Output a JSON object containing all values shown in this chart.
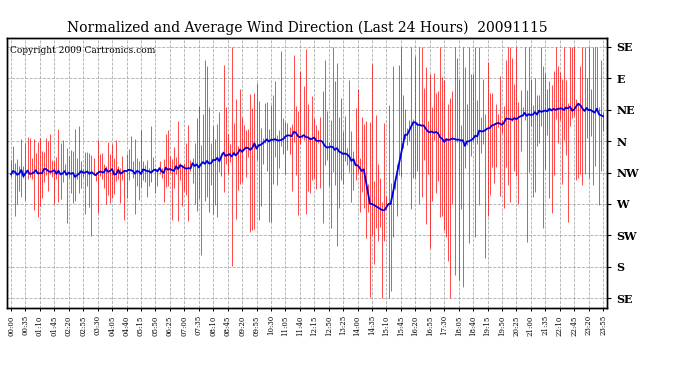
{
  "title": "Normalized and Average Wind Direction (Last 24 Hours)  20091115",
  "copyright": "Copyright 2009 Cartronics.com",
  "ytick_labels": [
    "SE",
    "E",
    "NE",
    "N",
    "NW",
    "W",
    "SW",
    "S",
    "SE"
  ],
  "ytick_values": [
    8,
    7,
    6,
    5,
    4,
    3,
    2,
    1,
    0
  ],
  "ylim": [
    -0.3,
    8.3
  ],
  "plot_bg_color": "#ffffff",
  "red_color": "#ff0000",
  "blue_color": "#0000dd",
  "grid_color": "#999999",
  "title_fontsize": 10,
  "copyright_fontsize": 6.5,
  "xtick_step_min": 35,
  "n_points": 288,
  "minutes_per_point": 5
}
